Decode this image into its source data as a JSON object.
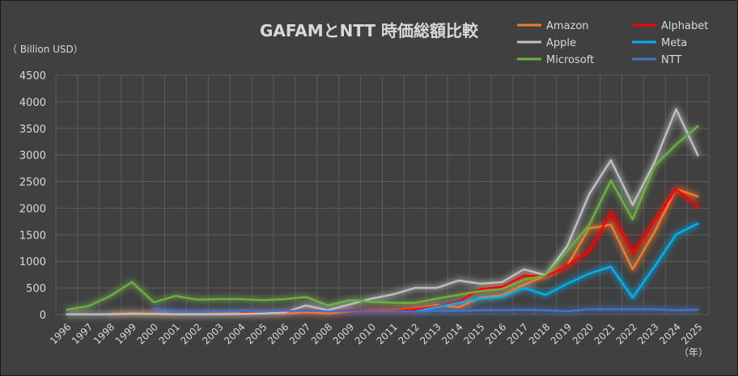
{
  "chart_data": {
    "type": "line",
    "title": "GAFAMとNTT 時価総額比較",
    "ylabel": "（ Billion USD）",
    "xlabel": "（年）",
    "ylim": [
      0,
      4500
    ],
    "yticks": [
      0,
      500,
      1000,
      1500,
      2000,
      2500,
      3000,
      3500,
      4000,
      4500
    ],
    "grid": true,
    "legend_position": "top-right",
    "x": [
      "1996",
      "1997",
      "1998",
      "1999",
      "2000",
      "2001",
      "2002",
      "2003",
      "2004",
      "2005",
      "2006",
      "2007",
      "2008",
      "2009",
      "2010",
      "2011",
      "2012",
      "2013",
      "2014",
      "2015",
      "2016",
      "2017",
      "2018",
      "2019",
      "2020",
      "2021",
      "2022",
      "2023",
      "2024",
      "2025"
    ],
    "series": [
      {
        "name": "Amazon",
        "color": "#ed7d31",
        "values": [
          null,
          null,
          10,
          25,
          15,
          5,
          10,
          20,
          20,
          20,
          20,
          40,
          25,
          55,
          80,
          80,
          110,
          180,
          140,
          320,
          360,
          560,
          730,
          920,
          1620,
          1690,
          850,
          1550,
          2360,
          2220
        ]
      },
      {
        "name": "Alphabet",
        "color": "#ff0000",
        "values": [
          null,
          null,
          null,
          null,
          null,
          null,
          null,
          null,
          55,
          60,
          70,
          75,
          60,
          70,
          70,
          70,
          100,
          150,
          240,
          480,
          520,
          730,
          720,
          920,
          1200,
          1920,
          1140,
          1760,
          2360,
          2030
        ]
      },
      {
        "name": "Apple",
        "color": "#bfbfbf",
        "values": [
          5,
          5,
          5,
          15,
          10,
          5,
          5,
          5,
          10,
          20,
          40,
          170,
          80,
          190,
          300,
          380,
          500,
          500,
          640,
          580,
          610,
          850,
          740,
          1290,
          2260,
          2900,
          2060,
          2860,
          3860,
          2990
        ]
      },
      {
        "name": "Meta",
        "color": "#00b0f0",
        "values": [
          null,
          null,
          null,
          null,
          null,
          null,
          null,
          null,
          null,
          null,
          null,
          null,
          null,
          null,
          null,
          null,
          60,
          140,
          220,
          300,
          330,
          500,
          370,
          580,
          770,
          900,
          320,
          900,
          1510,
          1710
        ]
      },
      {
        "name": "Microsoft",
        "color": "#70ad47",
        "values": [
          90,
          160,
          350,
          610,
          230,
          350,
          280,
          290,
          290,
          270,
          290,
          330,
          170,
          270,
          240,
          220,
          220,
          300,
          370,
          440,
          480,
          650,
          740,
          1200,
          1680,
          2520,
          1790,
          2790,
          3200,
          3540
        ]
      },
      {
        "name": "NTT",
        "color": "#4472c4",
        "values": [
          null,
          null,
          null,
          null,
          110,
          60,
          50,
          60,
          70,
          60,
          70,
          70,
          60,
          60,
          60,
          60,
          60,
          70,
          70,
          80,
          80,
          90,
          80,
          60,
          100,
          100,
          100,
          100,
          80,
          90
        ]
      }
    ]
  }
}
